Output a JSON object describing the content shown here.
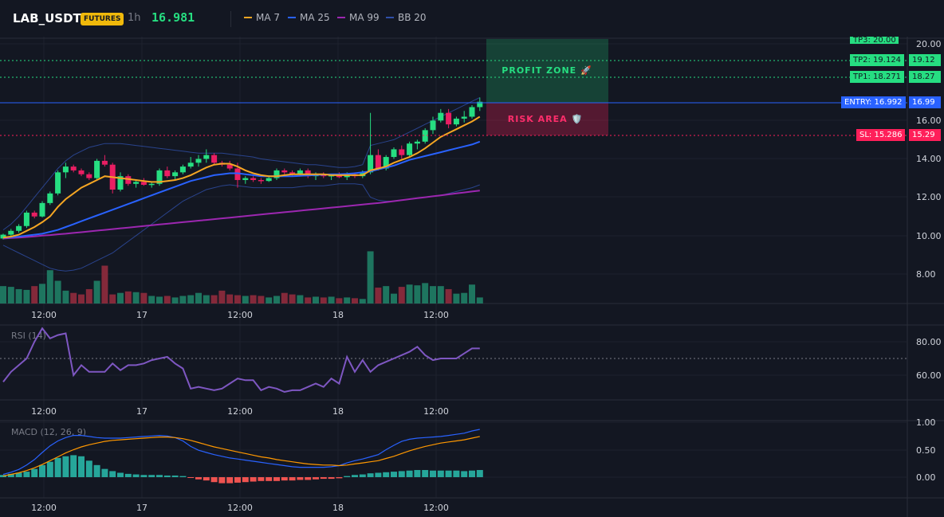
{
  "header": {
    "symbol": "LAB_USDT",
    "badge": "FUTURES",
    "timeframe": "1h",
    "last_price": "16.981",
    "indicators": [
      {
        "label": "MA 7",
        "color": "#f5a623"
      },
      {
        "label": "MA 25",
        "color": "#2962ff"
      },
      {
        "label": "MA 99",
        "color": "#9c27b0"
      },
      {
        "label": "BB 20",
        "color": "#2f4fa8"
      }
    ]
  },
  "zones": {
    "profit_label": "PROFIT ZONE 🚀",
    "risk_label": "RISK AREA 🛡️",
    "profit_color": "#26de81",
    "risk_color": "#ff1f5a"
  },
  "levels": {
    "top_tag": "TP3: 20.00",
    "tp2": {
      "label": "TP2: 19.124",
      "axis": "19.12"
    },
    "tp1": {
      "label": "TP1: 18.271",
      "axis": "18.27"
    },
    "entry": {
      "label": "ENTRY: 16.992",
      "axis": "16.99"
    },
    "sl": {
      "label": "SL: 15.286",
      "axis": "15.29"
    }
  },
  "price_axis": {
    "ticks": [
      "20.00",
      "16.00",
      "14.00",
      "12.00",
      "10.00",
      "8.00"
    ]
  },
  "rsi": {
    "label": "RSI (14)",
    "ticks": [
      "80.00",
      "60.00"
    ],
    "level": 70,
    "color": "#7e57c2",
    "values": [
      56,
      62,
      66,
      70,
      80,
      88,
      82,
      84,
      85,
      60,
      66,
      62,
      62,
      62,
      67,
      63,
      66,
      66,
      67,
      69,
      70,
      71,
      67,
      64,
      52,
      53,
      52,
      51,
      52,
      55,
      58,
      57,
      57,
      51,
      53,
      52,
      50,
      51,
      51,
      53,
      55,
      53,
      58,
      55,
      71,
      62,
      69,
      62,
      66,
      68,
      70,
      72,
      74,
      77,
      72,
      69,
      70,
      70,
      70,
      73,
      76,
      76
    ],
    "color_line": "#787b86"
  },
  "macd": {
    "label": "MACD (12, 26, 9)",
    "ticks": [
      "1.00",
      "0.50",
      "0.00"
    ],
    "hist": [
      0.04,
      0.06,
      0.08,
      0.1,
      0.15,
      0.22,
      0.28,
      0.35,
      0.38,
      0.4,
      0.38,
      0.3,
      0.22,
      0.15,
      0.11,
      0.08,
      0.06,
      0.05,
      0.04,
      0.04,
      0.04,
      0.03,
      0.03,
      0.02,
      -0.01,
      -0.04,
      -0.06,
      -0.09,
      -0.11,
      -0.11,
      -0.1,
      -0.09,
      -0.08,
      -0.07,
      -0.07,
      -0.07,
      -0.06,
      -0.06,
      -0.05,
      -0.05,
      -0.04,
      -0.03,
      -0.03,
      -0.02,
      0.02,
      0.04,
      0.05,
      0.07,
      0.08,
      0.09,
      0.1,
      0.11,
      0.12,
      0.13,
      0.13,
      0.12,
      0.12,
      0.12,
      0.12,
      0.11,
      0.12,
      0.13
    ],
    "macd_line": [
      0.05,
      0.09,
      0.14,
      0.22,
      0.32,
      0.45,
      0.57,
      0.66,
      0.72,
      0.76,
      0.76,
      0.74,
      0.72,
      0.71,
      0.71,
      0.71,
      0.72,
      0.73,
      0.74,
      0.75,
      0.76,
      0.75,
      0.72,
      0.66,
      0.56,
      0.49,
      0.45,
      0.41,
      0.38,
      0.35,
      0.33,
      0.31,
      0.29,
      0.27,
      0.25,
      0.23,
      0.21,
      0.19,
      0.18,
      0.18,
      0.18,
      0.18,
      0.19,
      0.21,
      0.26,
      0.3,
      0.33,
      0.37,
      0.41,
      0.5,
      0.58,
      0.65,
      0.69,
      0.71,
      0.72,
      0.73,
      0.74,
      0.76,
      0.78,
      0.8,
      0.84,
      0.87
    ],
    "signal_line": [
      0.02,
      0.05,
      0.08,
      0.12,
      0.17,
      0.23,
      0.3,
      0.37,
      0.44,
      0.5,
      0.55,
      0.59,
      0.62,
      0.65,
      0.67,
      0.68,
      0.69,
      0.7,
      0.71,
      0.72,
      0.73,
      0.73,
      0.72,
      0.7,
      0.67,
      0.63,
      0.59,
      0.55,
      0.52,
      0.49,
      0.46,
      0.43,
      0.4,
      0.37,
      0.35,
      0.32,
      0.3,
      0.28,
      0.26,
      0.24,
      0.23,
      0.22,
      0.22,
      0.21,
      0.22,
      0.24,
      0.26,
      0.28,
      0.3,
      0.34,
      0.38,
      0.43,
      0.48,
      0.52,
      0.56,
      0.59,
      0.62,
      0.64,
      0.66,
      0.68,
      0.71,
      0.74
    ],
    "macd_color": "#2962ff",
    "signal_color": "#ff9800",
    "hist_pos_color": "#26a69a",
    "hist_neg_color": "#ef5350"
  },
  "time_axis": {
    "labels": [
      "12:00",
      "17",
      "12:00",
      "18",
      "12:00"
    ]
  },
  "chart_data": {
    "type": "candlestick",
    "up_color": "#26de81",
    "down_color": "#e91e63",
    "candles": [
      [
        9.85,
        10.1,
        9.8,
        10.05
      ],
      [
        10.05,
        10.35,
        9.95,
        10.25
      ],
      [
        10.25,
        10.6,
        10.15,
        10.5
      ],
      [
        10.5,
        11.3,
        10.4,
        11.2
      ],
      [
        11.2,
        11.3,
        10.9,
        11.0
      ],
      [
        11.0,
        11.8,
        10.95,
        11.7
      ],
      [
        11.7,
        12.3,
        11.6,
        12.2
      ],
      [
        12.2,
        13.4,
        12.1,
        13.3
      ],
      [
        13.3,
        13.8,
        13.0,
        13.6
      ],
      [
        13.6,
        13.7,
        13.3,
        13.4
      ],
      [
        13.4,
        13.5,
        13.1,
        13.2
      ],
      [
        13.2,
        13.3,
        12.9,
        13.0
      ],
      [
        13.0,
        14.0,
        12.9,
        13.9
      ],
      [
        13.9,
        14.2,
        13.6,
        13.7
      ],
      [
        13.7,
        13.8,
        12.2,
        12.4
      ],
      [
        12.4,
        13.3,
        12.3,
        13.1
      ],
      [
        13.1,
        13.2,
        12.6,
        12.7
      ],
      [
        12.7,
        12.9,
        12.5,
        12.8
      ],
      [
        12.8,
        13.0,
        12.6,
        12.65
      ],
      [
        12.65,
        12.8,
        12.5,
        12.7
      ],
      [
        12.7,
        13.5,
        12.6,
        13.4
      ],
      [
        13.4,
        13.6,
        13.0,
        13.1
      ],
      [
        13.1,
        13.4,
        12.9,
        13.3
      ],
      [
        13.3,
        13.7,
        13.2,
        13.6
      ],
      [
        13.6,
        14.1,
        13.5,
        13.8
      ],
      [
        13.8,
        14.2,
        13.6,
        14.0
      ],
      [
        14.0,
        14.5,
        13.8,
        14.2
      ],
      [
        14.2,
        14.3,
        13.7,
        13.8
      ],
      [
        13.8,
        13.9,
        13.6,
        13.7
      ],
      [
        13.7,
        13.9,
        13.4,
        13.5
      ],
      [
        13.5,
        13.8,
        12.5,
        12.9
      ],
      [
        12.9,
        13.1,
        12.7,
        13.0
      ],
      [
        13.0,
        13.1,
        12.8,
        12.9
      ],
      [
        12.9,
        13.0,
        12.7,
        12.85
      ],
      [
        12.85,
        13.1,
        12.8,
        13.0
      ],
      [
        13.0,
        13.5,
        12.9,
        13.4
      ],
      [
        13.4,
        13.5,
        13.2,
        13.3
      ],
      [
        13.3,
        13.4,
        13.1,
        13.2
      ],
      [
        13.2,
        13.5,
        13.1,
        13.4
      ],
      [
        13.4,
        13.5,
        13.0,
        13.1
      ],
      [
        13.1,
        13.3,
        12.9,
        13.2
      ],
      [
        13.2,
        13.3,
        13.0,
        13.1
      ],
      [
        13.1,
        13.2,
        12.9,
        13.15
      ],
      [
        13.15,
        13.3,
        13.0,
        13.05
      ],
      [
        13.05,
        13.3,
        12.9,
        13.2
      ],
      [
        13.2,
        13.3,
        13.0,
        13.1
      ],
      [
        13.1,
        13.4,
        13.0,
        13.3
      ],
      [
        13.3,
        16.4,
        13.2,
        14.2
      ],
      [
        14.2,
        14.5,
        13.4,
        13.5
      ],
      [
        13.5,
        14.2,
        13.4,
        14.1
      ],
      [
        14.1,
        14.6,
        14.0,
        14.5
      ],
      [
        14.5,
        14.7,
        14.0,
        14.2
      ],
      [
        14.2,
        14.9,
        14.1,
        14.8
      ],
      [
        14.8,
        15.0,
        14.5,
        14.9
      ],
      [
        14.9,
        15.6,
        14.8,
        15.5
      ],
      [
        15.5,
        16.2,
        15.3,
        16.0
      ],
      [
        16.0,
        16.6,
        15.9,
        16.4
      ],
      [
        16.4,
        16.6,
        15.6,
        15.8
      ],
      [
        15.8,
        16.2,
        15.7,
        16.1
      ],
      [
        16.1,
        16.5,
        15.9,
        16.2
      ],
      [
        16.2,
        16.8,
        16.1,
        16.7
      ],
      [
        16.7,
        17.2,
        16.5,
        16.98
      ]
    ],
    "volume": [
      2.3,
      2.2,
      1.9,
      1.8,
      2.3,
      2.6,
      4.4,
      3.0,
      1.7,
      1.4,
      1.2,
      1.9,
      3.0,
      5.0,
      1.2,
      1.4,
      1.6,
      1.5,
      1.4,
      1.0,
      0.9,
      1.0,
      0.8,
      1.0,
      1.1,
      1.4,
      1.1,
      1.1,
      1.7,
      1.2,
      1.1,
      1.0,
      1.1,
      1.0,
      0.8,
      1.0,
      1.4,
      1.2,
      1.1,
      0.8,
      0.9,
      0.8,
      0.9,
      0.7,
      0.8,
      0.7,
      0.6,
      6.9,
      2.1,
      2.3,
      1.3,
      2.2,
      2.5,
      2.4,
      2.7,
      2.3,
      2.3,
      1.9,
      1.3,
      1.4,
      2.5,
      0.8
    ],
    "ma7": [
      9.9,
      9.95,
      10.05,
      10.25,
      10.45,
      10.7,
      11.0,
      11.5,
      11.9,
      12.2,
      12.5,
      12.7,
      12.9,
      13.1,
      13.05,
      13.0,
      12.95,
      12.9,
      12.85,
      12.8,
      12.8,
      12.85,
      12.9,
      13.0,
      13.15,
      13.35,
      13.55,
      13.7,
      13.75,
      13.75,
      13.6,
      13.4,
      13.25,
      13.15,
      13.1,
      13.1,
      13.15,
      13.2,
      13.2,
      13.2,
      13.2,
      13.2,
      13.15,
      13.15,
      13.15,
      13.15,
      13.15,
      13.4,
      13.5,
      13.6,
      13.8,
      13.95,
      14.1,
      14.3,
      14.55,
      14.85,
      15.15,
      15.35,
      15.55,
      15.75,
      15.95,
      16.2
    ],
    "ma25": [
      9.9,
      9.92,
      9.95,
      10.0,
      10.05,
      10.1,
      10.2,
      10.3,
      10.45,
      10.6,
      10.75,
      10.9,
      11.05,
      11.2,
      11.35,
      11.5,
      11.65,
      11.8,
      11.95,
      12.1,
      12.25,
      12.4,
      12.55,
      12.7,
      12.85,
      12.95,
      13.05,
      13.15,
      13.2,
      13.25,
      13.25,
      13.2,
      13.15,
      13.1,
      13.1,
      13.1,
      13.1,
      13.1,
      13.12,
      13.14,
      13.16,
      13.18,
      13.2,
      13.2,
      13.22,
      13.25,
      13.3,
      13.35,
      13.45,
      13.55,
      13.65,
      13.8,
      13.95,
      14.05,
      14.15,
      14.25,
      14.35,
      14.45,
      14.55,
      14.65,
      14.75,
      14.9
    ],
    "ma99": [
      9.85,
      9.88,
      9.9,
      9.93,
      9.96,
      10.0,
      10.03,
      10.07,
      10.1,
      10.14,
      10.18,
      10.22,
      10.26,
      10.3,
      10.34,
      10.38,
      10.42,
      10.46,
      10.5,
      10.54,
      10.58,
      10.62,
      10.66,
      10.7,
      10.74,
      10.78,
      10.82,
      10.86,
      10.9,
      10.94,
      10.98,
      11.02,
      11.06,
      11.1,
      11.14,
      11.18,
      11.22,
      11.26,
      11.3,
      11.34,
      11.38,
      11.42,
      11.46,
      11.5,
      11.54,
      11.58,
      11.62,
      11.66,
      11.7,
      11.75,
      11.8,
      11.85,
      11.9,
      11.95,
      12.0,
      12.05,
      12.1,
      12.15,
      12.2,
      12.25,
      12.3,
      12.35
    ],
    "bb_upper": [
      10.3,
      10.6,
      11.0,
      11.5,
      12.0,
      12.5,
      13.0,
      13.5,
      13.9,
      14.2,
      14.4,
      14.6,
      14.7,
      14.8,
      14.8,
      14.8,
      14.75,
      14.7,
      14.65,
      14.6,
      14.55,
      14.5,
      14.45,
      14.4,
      14.35,
      14.3,
      14.3,
      14.3,
      14.3,
      14.25,
      14.2,
      14.15,
      14.1,
      14.0,
      13.95,
      13.9,
      13.85,
      13.8,
      13.75,
      13.7,
      13.7,
      13.65,
      13.6,
      13.55,
      13.55,
      13.6,
      13.7,
      14.7,
      14.8,
      14.9,
      15.0,
      15.2,
      15.4,
      15.6,
      15.8,
      16.0,
      16.2,
      16.4,
      16.6,
      16.8,
      17.0,
      17.2
    ],
    "bb_lower": [
      9.5,
      9.3,
      9.1,
      8.9,
      8.7,
      8.5,
      8.3,
      8.2,
      8.15,
      8.2,
      8.3,
      8.5,
      8.7,
      8.9,
      9.1,
      9.4,
      9.7,
      10.0,
      10.3,
      10.6,
      10.9,
      11.2,
      11.5,
      11.8,
      12.0,
      12.2,
      12.4,
      12.5,
      12.6,
      12.65,
      12.6,
      12.55,
      12.5,
      12.5,
      12.5,
      12.5,
      12.5,
      12.5,
      12.55,
      12.6,
      12.6,
      12.6,
      12.65,
      12.7,
      12.7,
      12.7,
      12.65,
      12.0,
      11.85,
      11.8,
      11.8,
      11.85,
      11.9,
      11.95,
      12.0,
      12.05,
      12.1,
      12.2,
      12.3,
      12.4,
      12.5,
      12.65
    ]
  }
}
